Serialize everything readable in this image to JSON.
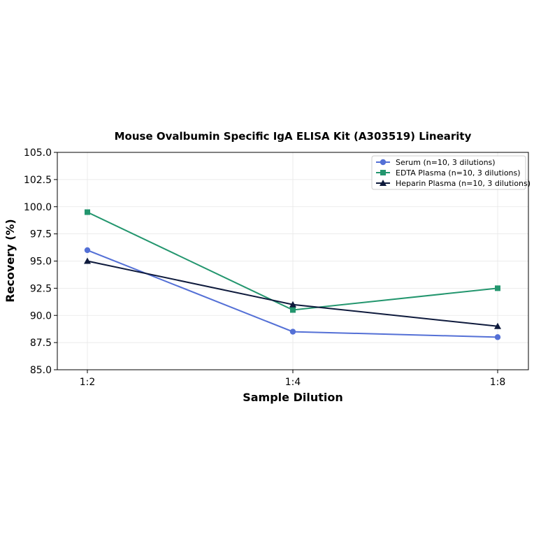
{
  "chart_data": {
    "type": "line",
    "title": "Mouse Ovalbumin Specific IgA ELISA Kit (A303519) Linearity",
    "xlabel": "Sample Dilution",
    "ylabel": "Recovery (%)",
    "categories": [
      "1:2",
      "1:4",
      "1:8"
    ],
    "ylim": [
      85.0,
      105.0
    ],
    "yticks": [
      "85.0",
      "87.5",
      "90.0",
      "92.5",
      "95.0",
      "97.5",
      "100.0",
      "102.5",
      "105.0"
    ],
    "grid": true,
    "legend_position": "top-right",
    "series": [
      {
        "name": "Serum (n=10, 3 dilutions)",
        "values": [
          96.0,
          88.5,
          88.0
        ],
        "color": "#5470d6",
        "marker": "circle"
      },
      {
        "name": "EDTA Plasma (n=10, 3 dilutions)",
        "values": [
          99.5,
          90.5,
          92.5
        ],
        "color": "#23966e",
        "marker": "square"
      },
      {
        "name": "Heparin Plasma (n=10, 3 dilutions)",
        "values": [
          95.0,
          91.0,
          89.0
        ],
        "color": "#0e1a3c",
        "marker": "triangle"
      }
    ]
  }
}
